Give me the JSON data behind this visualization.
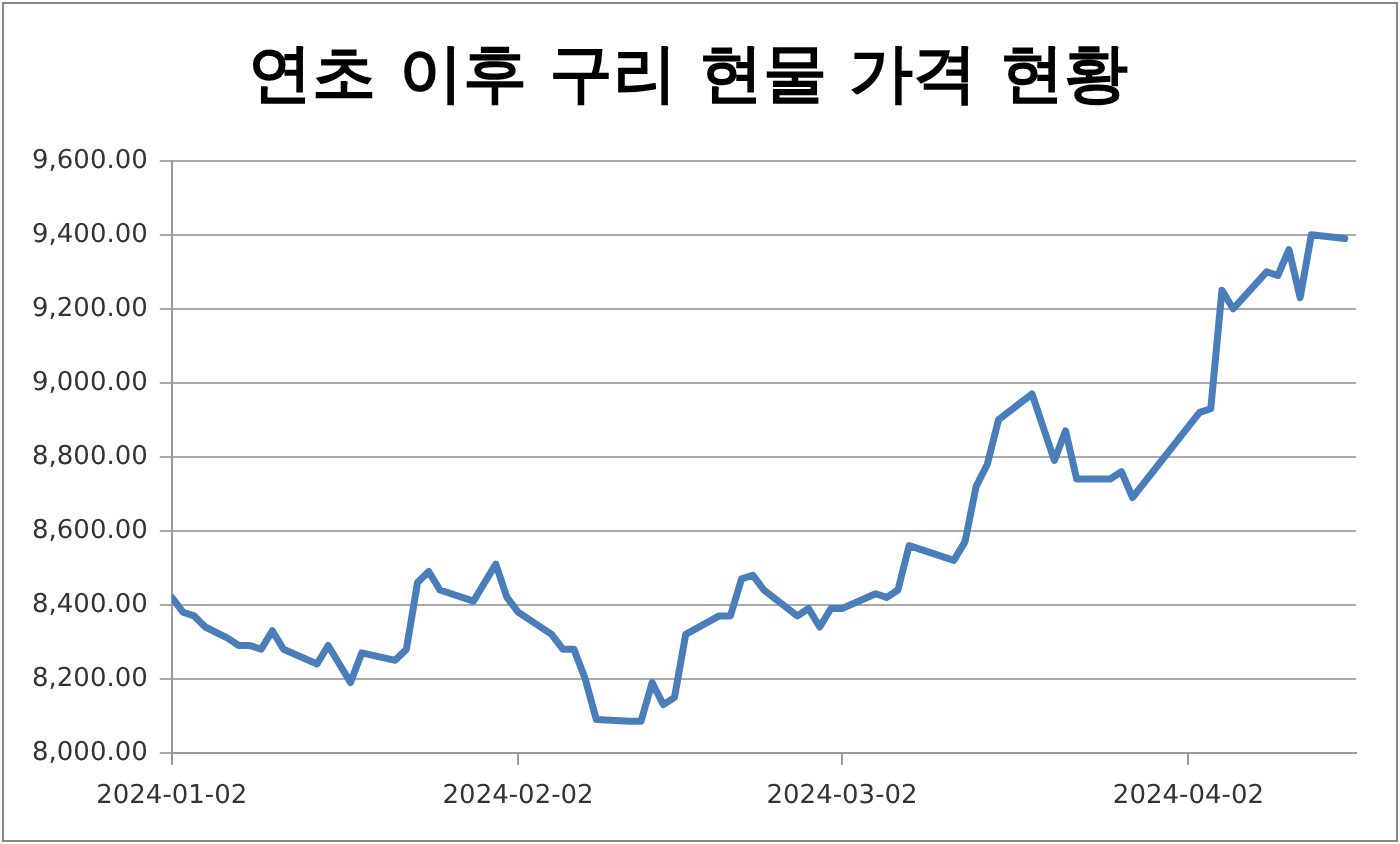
{
  "chart_data": {
    "type": "line",
    "title": "연초 이후 구리 현물 가격 현황",
    "x": [
      "2024-01-02",
      "2024-01-03",
      "2024-01-04",
      "2024-01-05",
      "2024-01-07",
      "2024-01-08",
      "2024-01-09",
      "2024-01-10",
      "2024-01-11",
      "2024-01-12",
      "2024-01-15",
      "2024-01-16",
      "2024-01-18",
      "2024-01-19",
      "2024-01-22",
      "2024-01-23",
      "2024-01-24",
      "2024-01-25",
      "2024-01-26",
      "2024-01-29",
      "2024-01-31",
      "2024-02-01",
      "2024-02-02",
      "2024-02-05",
      "2024-02-06",
      "2024-02-07",
      "2024-02-08",
      "2024-02-09",
      "2024-02-12",
      "2024-02-13",
      "2024-02-14",
      "2024-02-15",
      "2024-02-16",
      "2024-02-17",
      "2024-02-20",
      "2024-02-21",
      "2024-02-22",
      "2024-02-23",
      "2024-02-24",
      "2024-02-27",
      "2024-02-28",
      "2024-02-29",
      "2024-03-01",
      "2024-03-02",
      "2024-03-05",
      "2024-03-06",
      "2024-03-07",
      "2024-03-08",
      "2024-03-12",
      "2024-03-13",
      "2024-03-14",
      "2024-03-15",
      "2024-03-16",
      "2024-03-19",
      "2024-03-21",
      "2024-03-22",
      "2024-03-23",
      "2024-03-26",
      "2024-03-27",
      "2024-03-28",
      "2024-04-03",
      "2024-04-04",
      "2024-04-05",
      "2024-04-06",
      "2024-04-09",
      "2024-04-10",
      "2024-04-11",
      "2024-04-12",
      "2024-04-13",
      "2024-04-16"
    ],
    "series": [
      {
        "color": "#4a7ebb",
        "values": [
          8420,
          8380,
          8370,
          8340,
          8310,
          8290,
          8290,
          8280,
          8330,
          8280,
          8240,
          8290,
          8190,
          8270,
          8250,
          8280,
          8460,
          8490,
          8440,
          8410,
          8510,
          8420,
          8380,
          8320,
          8280,
          8280,
          8200,
          8090,
          8085,
          8085,
          8190,
          8130,
          8150,
          8320,
          8370,
          8370,
          8470,
          8480,
          8440,
          8370,
          8390,
          8340,
          8390,
          8390,
          8430,
          8420,
          8440,
          8560,
          8520,
          8570,
          8720,
          8780,
          8900,
          8970,
          8790,
          8870,
          8740,
          8740,
          8760,
          8690,
          8920,
          8930,
          9250,
          9200,
          9300,
          9290,
          9360,
          9230,
          9400,
          9390
        ]
      }
    ],
    "xlim": [
      "2024-01-02",
      "2024-04-17"
    ],
    "xticks": [
      "2024-01-02",
      "2024-02-02",
      "2024-03-02",
      "2024-04-02"
    ],
    "ylim": [
      8000,
      9600
    ],
    "yticks": [
      {
        "value": 8000,
        "label": "8,000.00"
      },
      {
        "value": 8200,
        "label": "8,200.00"
      },
      {
        "value": 8400,
        "label": "8,400.00"
      },
      {
        "value": 8600,
        "label": "8,600.00"
      },
      {
        "value": 8800,
        "label": "8,800.00"
      },
      {
        "value": 9000,
        "label": "9,000.00"
      },
      {
        "value": 9200,
        "label": "9,200.00"
      },
      {
        "value": 9400,
        "label": "9,400.00"
      },
      {
        "value": 9600,
        "label": "9,600.00"
      }
    ],
    "grid": "y",
    "legend": false,
    "marker": "none",
    "line_style": "solid"
  }
}
